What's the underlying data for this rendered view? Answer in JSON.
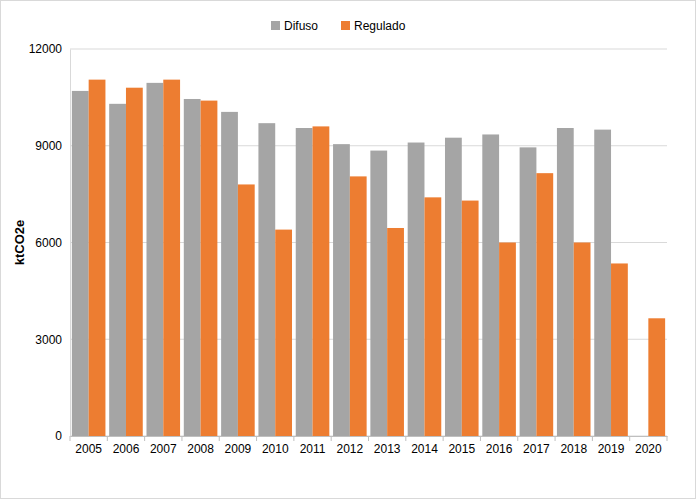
{
  "chart_data": {
    "type": "bar",
    "y_label": "ktCO2e",
    "categories": [
      "2005",
      "2006",
      "2007",
      "2008",
      "2009",
      "2010",
      "2011",
      "2012",
      "2013",
      "2014",
      "2015",
      "2016",
      "2017",
      "2018",
      "2019",
      "2020"
    ],
    "series": [
      {
        "name": "Difuso",
        "color": "#a5a5a5",
        "values": [
          10700,
          10300,
          10950,
          10450,
          10050,
          9700,
          9550,
          9050,
          8850,
          9100,
          9250,
          9350,
          8950,
          9550,
          9500,
          null
        ]
      },
      {
        "name": "Regulado",
        "color": "#ed7d31",
        "values": [
          11050,
          10800,
          11050,
          10400,
          7800,
          6400,
          9600,
          8050,
          6450,
          7400,
          7300,
          6000,
          8150,
          6000,
          5350,
          3650
        ]
      }
    ],
    "ylim": [
      0,
      12000
    ],
    "yticks": [
      0,
      3000,
      6000,
      9000,
      12000
    ],
    "grid": true,
    "legend": "top"
  }
}
